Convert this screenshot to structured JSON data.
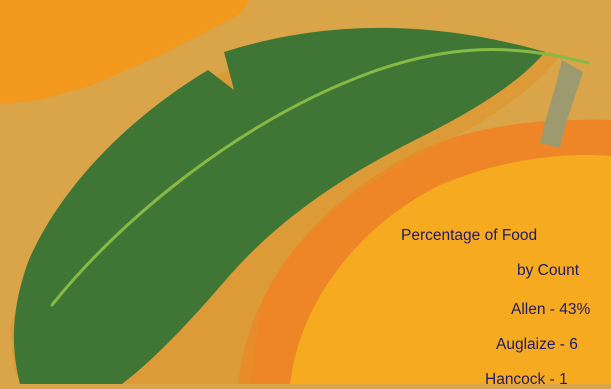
{
  "heading_line1": "Percentage of Food",
  "heading_line2": "by Count",
  "counties": [
    {
      "label": "Allen - 43%"
    },
    {
      "label": "Auglaize - 6"
    },
    {
      "label": "Hancock - 1"
    }
  ],
  "colors": {
    "background": "#D9A548",
    "orange_splash": "#F39A1E",
    "fruit_outer": "#EE8628",
    "fruit_inner": "#F6AA1F",
    "leaf": "#3F7636",
    "leaf_vein": "#86BA45",
    "stem": "#9D9A6F",
    "text": "#1E1A6E"
  }
}
